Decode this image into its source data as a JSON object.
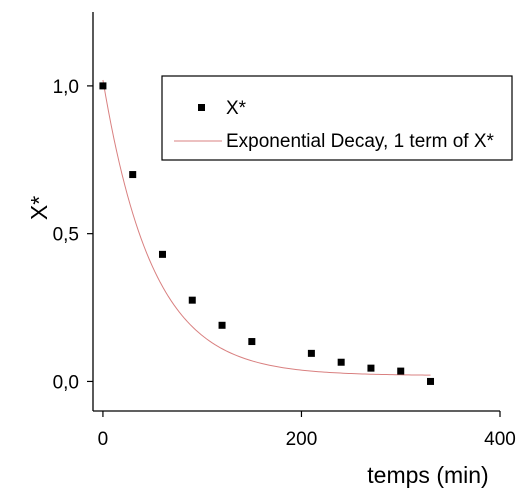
{
  "chart_data": {
    "type": "scatter",
    "xlabel": "temps (min)",
    "ylabel": "X*",
    "xlim": [
      -10,
      400
    ],
    "ylim": [
      -0.1,
      1.25
    ],
    "x_ticks": [
      0,
      200,
      400
    ],
    "x_tick_labels": [
      "0",
      "200",
      "400"
    ],
    "y_ticks": [
      0.0,
      0.5,
      1.0
    ],
    "y_tick_labels": [
      "0,0",
      "0,5",
      "1,0"
    ],
    "grid": false,
    "legend_position": "top-right",
    "series": [
      {
        "name": "X*",
        "kind": "scatter",
        "color": "#000000",
        "marker": "square",
        "x": [
          0,
          30,
          60,
          90,
          120,
          150,
          210,
          240,
          270,
          300,
          330
        ],
        "y": [
          1.0,
          0.7,
          0.43,
          0.275,
          0.19,
          0.135,
          0.095,
          0.065,
          0.045,
          0.035,
          0.0
        ]
      },
      {
        "name": "Exponential Decay, 1 term of X*",
        "kind": "line",
        "color": "#d98080",
        "fit": {
          "A": 1.0,
          "tau": 50,
          "y0": 0.02
        },
        "x_range": [
          0,
          330
        ]
      }
    ]
  }
}
